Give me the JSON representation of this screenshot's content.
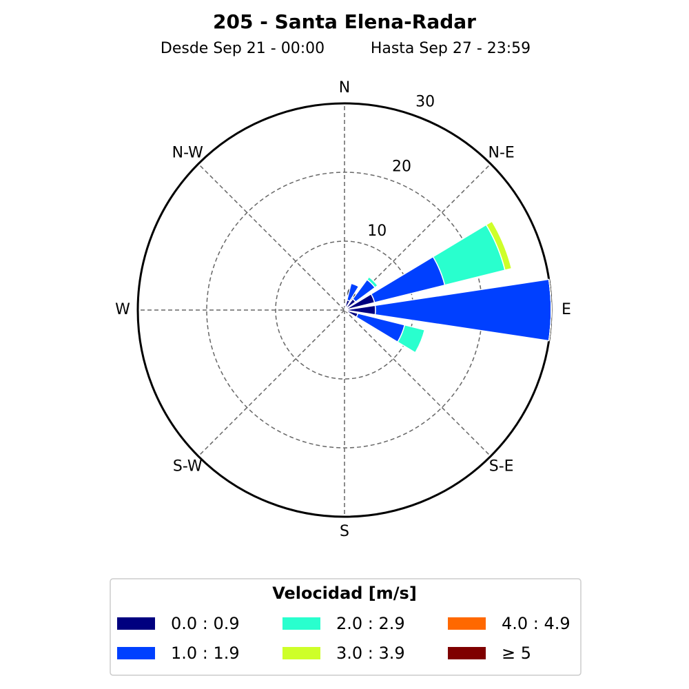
{
  "chart_data": {
    "type": "windrose",
    "title": "205 - Santa Elena-Radar",
    "subtitle": [
      "Desde Sep 21 - 00:00",
      "Hasta Sep 27 - 23:59"
    ],
    "categories": [
      "N",
      null,
      "N-E",
      null,
      "E",
      null,
      "S-E",
      null,
      "S",
      null,
      "S-W",
      null,
      "W",
      null,
      "N-W",
      null
    ],
    "ylim": [
      0,
      30
    ],
    "yticks": [
      0,
      10,
      20,
      30
    ],
    "grid": true,
    "legend_title": "Velocidad [m/s]",
    "series": [
      {
        "name": "0.0 : 0.9",
        "color": "#00007f",
        "values": [
          0,
          1.5,
          2,
          4.5,
          4.5,
          2,
          0,
          0,
          0,
          0,
          0,
          0,
          0,
          0,
          0,
          0
        ]
      },
      {
        "name": "1.0 : 1.9",
        "color": "#0040ff",
        "values": [
          0,
          2.5,
          3.5,
          10.5,
          25.5,
          7,
          0,
          0,
          0,
          0,
          0,
          0,
          0,
          0,
          0,
          0
        ]
      },
      {
        "name": "2.0 : 2.9",
        "color": "#29ffce",
        "values": [
          0,
          0,
          0.5,
          9,
          0,
          3,
          0,
          0,
          0,
          0,
          0,
          0,
          0,
          0,
          0,
          0
        ]
      },
      {
        "name": "3.0 : 3.9",
        "color": "#ceff29",
        "values": [
          0,
          0,
          0,
          1,
          0,
          0,
          0,
          0,
          0,
          0,
          0,
          0,
          0,
          0,
          0,
          0
        ]
      },
      {
        "name": "4.0 : 4.9",
        "color": "#ff6800",
        "values": [
          0,
          0,
          0,
          0,
          0,
          0,
          0,
          0,
          0,
          0,
          0,
          0,
          0,
          0,
          0,
          0
        ]
      },
      {
        "name": "≥  5",
        "color": "#7f0000",
        "values": [
          0,
          0,
          0,
          0,
          0,
          0,
          0,
          0,
          0,
          0,
          0,
          0,
          0,
          0,
          0,
          0
        ]
      }
    ]
  }
}
